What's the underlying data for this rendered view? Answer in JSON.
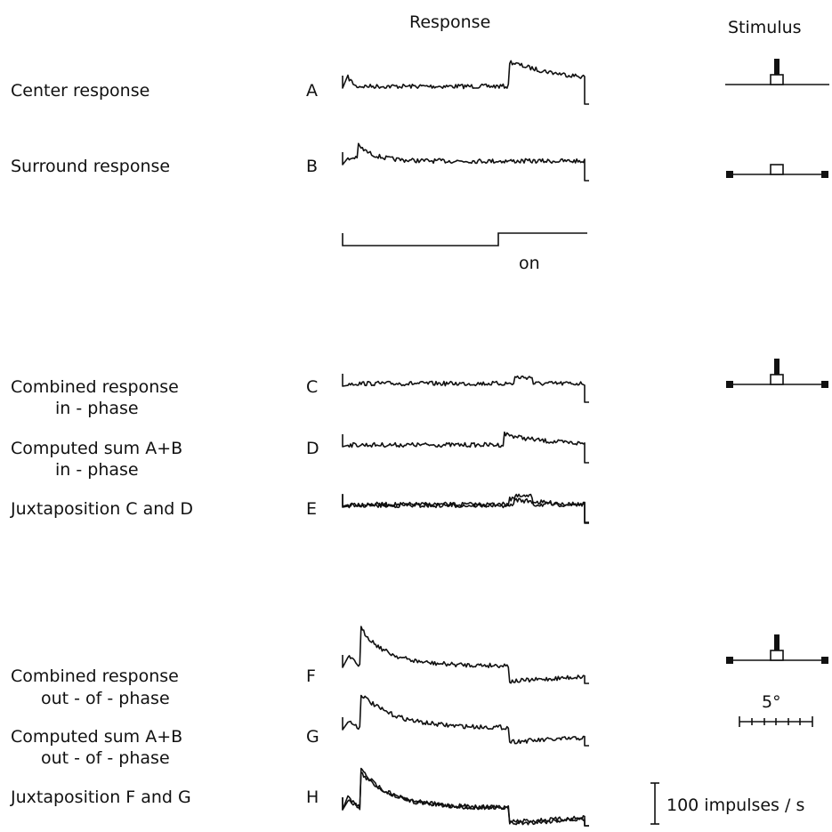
{
  "header": {
    "response": "Response",
    "stimulus": "Stimulus"
  },
  "rows": [
    {
      "id": "A",
      "label_lines": [
        "Center response"
      ]
    },
    {
      "id": "B",
      "label_lines": [
        "Surround response"
      ]
    },
    {
      "id": "C",
      "label_lines": [
        "Combined response",
        "in - phase"
      ]
    },
    {
      "id": "D",
      "label_lines": [
        "Computed sum A+B",
        "in - phase"
      ]
    },
    {
      "id": "E",
      "label_lines": [
        "Juxtaposition C and D"
      ]
    },
    {
      "id": "F",
      "label_lines": [
        "Combined response",
        "out - of - phase"
      ]
    },
    {
      "id": "G",
      "label_lines": [
        "Computed sum A+B",
        "out - of - phase"
      ]
    },
    {
      "id": "H",
      "label_lines": [
        "Juxtaposition F and G"
      ]
    }
  ],
  "stimulus_timing": {
    "label": "on"
  },
  "scale_bars": {
    "angle": "5°",
    "rate": "100 impulses / s"
  },
  "colors": {
    "ink": "#111111",
    "background": "#ffffff"
  }
}
